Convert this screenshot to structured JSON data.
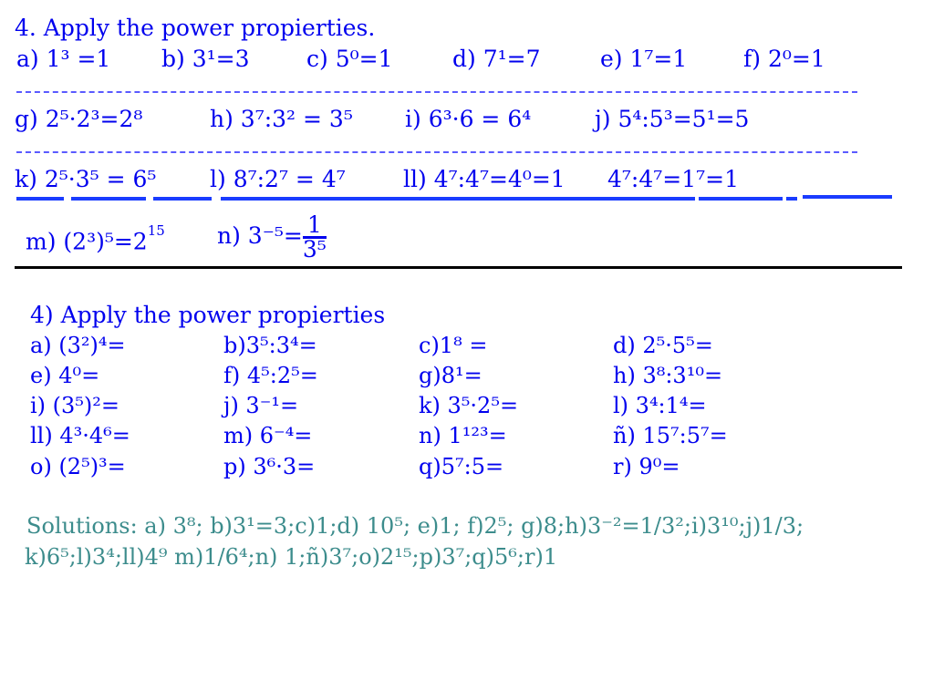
{
  "top": {
    "title": "4. Apply the power propierties.",
    "row1": [
      "a) 1³ =1",
      "b) 3¹=3",
      "c) 5⁰=1",
      "d) 7¹=7",
      "e) 1⁷=1",
      "f) 2⁰=1"
    ],
    "row2": [
      "g) 2⁵·2³=2⁸",
      "h) 3⁷:3² = 3⁵",
      "i) 6³·6 = 6⁴",
      "j) 5⁴:5³=5¹=5"
    ],
    "row3": [
      "k) 2⁵·3⁵ = 6⁵",
      "l) 8⁷:2⁷ = 4⁷",
      "ll) 4⁷:4⁷=4⁰=1",
      "4⁷:4⁷=1⁷=1"
    ],
    "m_label": "m) (2³)⁵=2",
    "m_exp": "15",
    "n_label": "n) 3⁻⁵=",
    "n_num": "1",
    "n_den": "3⁵"
  },
  "bottom": {
    "title": "4) Apply the power propierties",
    "rows": [
      [
        "a) (3²)⁴=",
        "b)3⁵:3⁴=",
        "c)1⁸ =",
        "d) 2⁵·5⁵="
      ],
      [
        "e) 4⁰=",
        "f) 4⁵:2⁵=",
        "g)8¹=",
        "h) 3⁸:3¹⁰="
      ],
      [
        "i) (3⁵)²=",
        "j) 3⁻¹=",
        "k) 3⁵·2⁵=",
        "l) 3⁴:1⁴="
      ],
      [
        "ll) 4³·4⁶=",
        "m) 6⁻⁴=",
        "n) 1¹²³=",
        "ñ) 15⁷:5⁷="
      ],
      [
        "o) (2⁵)³=",
        "p) 3⁶·3=",
        "q)5⁷:5=",
        "r) 9⁰="
      ]
    ],
    "solutions_line1": "Solutions: a) 3⁸; b)3¹=3;c)1;d) 10⁵; e)1; f)2⁵; g)8;h)3⁻²=1/3²;i)3¹⁰;j)1/3;",
    "solutions_line2": "k)6⁵;l)3⁴;ll)4⁹ m)1/6⁴;n) 1;ñ)3⁷;o)2¹⁵;p)3⁷;q)5⁶;r)1"
  },
  "colors": {
    "text": "#0000ee",
    "solutions": "#3c8c8c",
    "rule": "#000000"
  }
}
